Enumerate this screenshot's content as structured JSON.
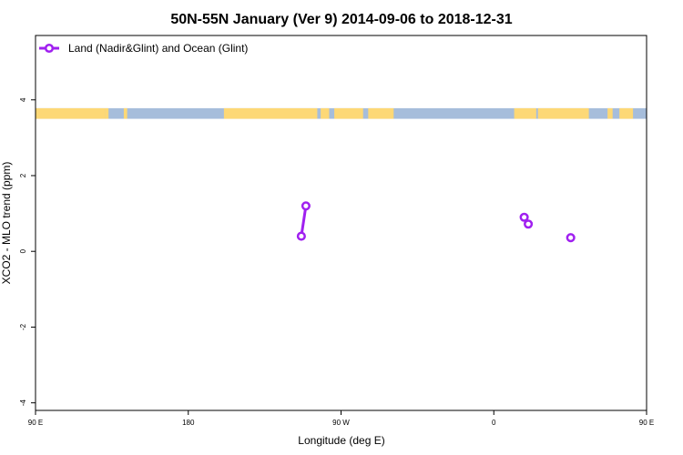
{
  "chart_data": {
    "type": "line",
    "title": "50N-55N January (Ver 9)   2014-09-06 to 2018-12-31",
    "xlabel": "Longitude (deg E)",
    "ylabel": "XCO2 - MLO trend (ppm)",
    "xlim": [
      90,
      450
    ],
    "ylim": [
      -4.2,
      5.7
    ],
    "x_ticks": [
      {
        "value": 90,
        "label": "90 E"
      },
      {
        "value": 180,
        "label": "180"
      },
      {
        "value": 270,
        "label": "90 W"
      },
      {
        "value": 360,
        "label": "0"
      },
      {
        "value": 450,
        "label": "90 E"
      }
    ],
    "y_ticks": [
      {
        "value": -4,
        "label": "-4"
      },
      {
        "value": -2,
        "label": "-2"
      },
      {
        "value": 0,
        "label": "0"
      },
      {
        "value": 2,
        "label": "2"
      },
      {
        "value": 4,
        "label": "4"
      }
    ],
    "grid": false,
    "legend": {
      "position": "top-left"
    },
    "series": [
      {
        "name": "Land (Nadir&Glint) and Ocean (Glint)",
        "color": "#a020f0",
        "segments": [
          [
            {
              "x": 246.6,
              "y": 0.4
            },
            {
              "x": 249.3,
              "y": 1.2
            }
          ],
          [
            {
              "x": 377.9,
              "y": 0.9
            }
          ],
          [
            {
              "x": 380.3,
              "y": 0.72
            }
          ],
          [
            {
              "x": 405.3,
              "y": 0.36
            }
          ]
        ]
      }
    ],
    "land_ocean_strip": {
      "y_range": [
        3.5,
        3.78
      ],
      "ocean_color": "#a6bddb",
      "land_color": "#fdd876",
      "land_ranges": [
        [
          90,
          131
        ],
        [
          131,
          133
        ],
        [
          142,
          144
        ],
        [
          201,
          256
        ],
        [
          258,
          263
        ],
        [
          266,
          283
        ],
        [
          286,
          301
        ],
        [
          372,
          385
        ],
        [
          386,
          416
        ],
        [
          427,
          430
        ],
        [
          434,
          442
        ]
      ]
    }
  }
}
